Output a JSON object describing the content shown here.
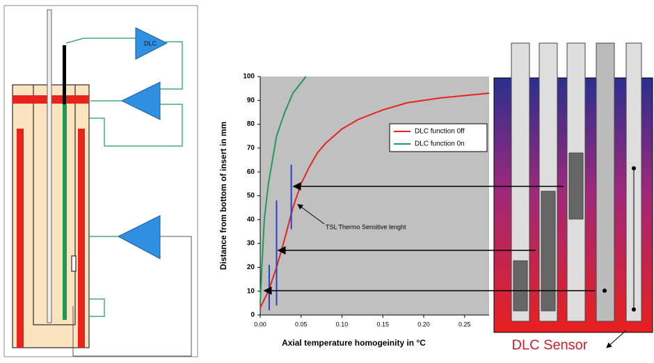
{
  "chart_data": {
    "type": "line",
    "xlabel": "Axial temperature homogeinity in °C",
    "ylabel": "Distance from bottom of insert in mm",
    "xlim": [
      0,
      0.28
    ],
    "ylim": [
      0,
      100
    ],
    "xticks": [
      {
        "value": 0,
        "label": "0.00"
      },
      {
        "value": 0.05,
        "label": "0.05"
      },
      {
        "value": 0.1,
        "label": "0.10"
      },
      {
        "value": 0.15,
        "label": "0.15"
      },
      {
        "value": 0.2,
        "label": "0.20"
      },
      {
        "value": 0.25,
        "label": "0.25"
      }
    ],
    "yticks": [
      0,
      10,
      20,
      30,
      40,
      50,
      60,
      70,
      80,
      90,
      100
    ],
    "series": [
      {
        "name": "DLC function 0ff",
        "color": "#e8231c",
        "x": [
          0,
          0.01,
          0.02,
          0.03,
          0.04,
          0.05,
          0.06,
          0.07,
          0.08,
          0.1,
          0.12,
          0.15,
          0.18,
          0.22,
          0.28
        ],
        "values": [
          3,
          10,
          20,
          32,
          45,
          55,
          62,
          68,
          72,
          78,
          82,
          86,
          89,
          91,
          93
        ]
      },
      {
        "name": "DLC function 0n",
        "color": "#1f9a55",
        "x": [
          0,
          0.002,
          0.005,
          0.01,
          0.015,
          0.02,
          0.03,
          0.04,
          0.056
        ],
        "values": [
          5,
          20,
          40,
          55,
          65,
          75,
          85,
          93,
          100
        ]
      }
    ],
    "tsl_markers": {
      "color": "#2b3fbf",
      "x": [
        0.011,
        0.02,
        0.038
      ],
      "low": [
        2,
        4,
        36
      ],
      "high": [
        21,
        48,
        63
      ]
    },
    "annotation": "TSL Thermo Sensitive lenght",
    "legend": "upper right",
    "background": "#c0c0c0"
  },
  "diagram": {
    "amplifier_label": "DLC"
  },
  "sensor_label": "DLC Sensor"
}
